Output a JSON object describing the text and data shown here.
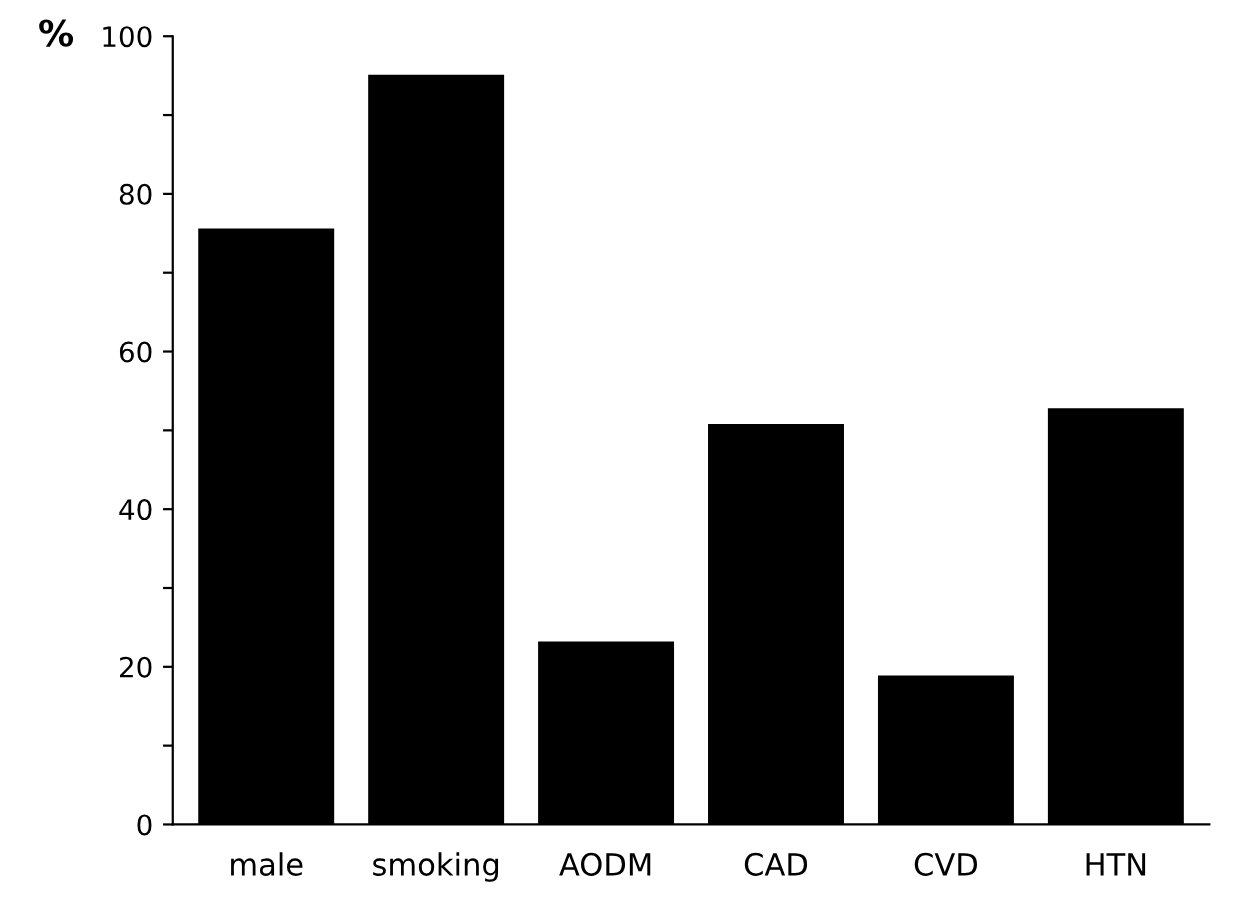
{
  "chart_data": {
    "type": "bar",
    "ylabel": "%",
    "categories": [
      "male",
      "smoking",
      "AODM",
      "CAD",
      "CVD",
      "HTN"
    ],
    "values": [
      75.6,
      95.1,
      23.2,
      50.8,
      18.9,
      52.8
    ],
    "color": "#000000",
    "ylim": [
      0,
      100
    ],
    "yticks": [
      0,
      {
        "value": 10,
        "label": null
      },
      20,
      {
        "value": 30,
        "label": null
      },
      40,
      {
        "value": 50,
        "label": null
      },
      60,
      {
        "value": 70,
        "label": null
      },
      80,
      {
        "value": 90,
        "label": null
      },
      100
    ],
    "grid": false,
    "legend": false
  }
}
